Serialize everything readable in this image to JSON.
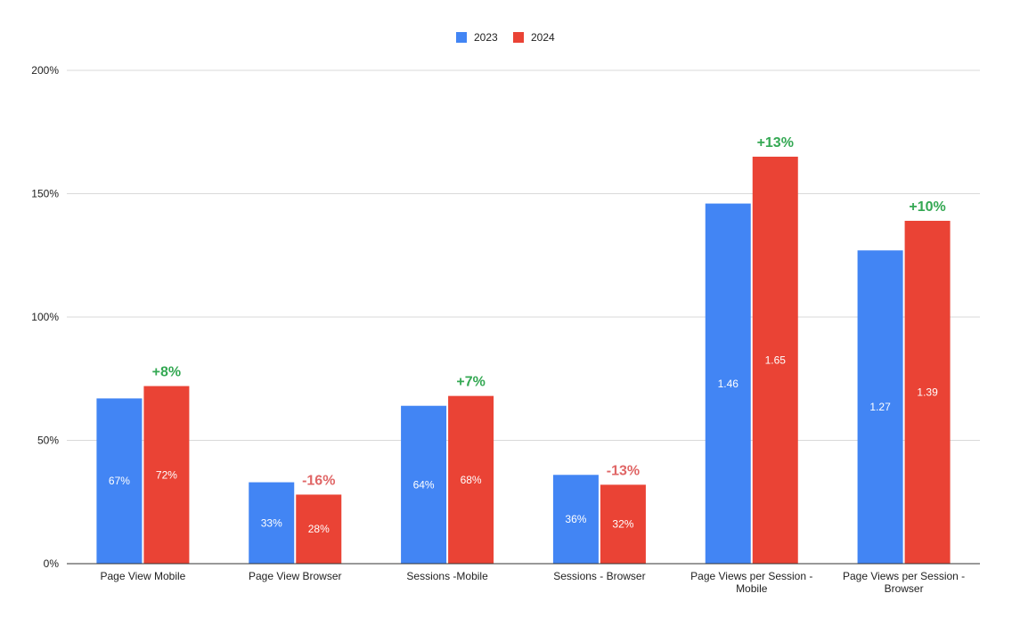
{
  "chart_data": {
    "type": "bar",
    "categories": [
      [
        "Page View Mobile"
      ],
      [
        "Page View  Browser"
      ],
      [
        "Sessions -Mobile"
      ],
      [
        "Sessions - Browser"
      ],
      [
        "Page Views per Session -",
        "Mobile"
      ],
      [
        "Page Views per Session -",
        "Browser"
      ]
    ],
    "series": [
      {
        "name": "2023",
        "color": "#4285f4",
        "values": [
          0.67,
          0.33,
          0.64,
          0.36,
          1.46,
          1.27
        ],
        "labels": [
          "67%",
          "33%",
          "64%",
          "36%",
          "1.46",
          "1.27"
        ]
      },
      {
        "name": "2024",
        "color": "#ea4335",
        "values": [
          0.72,
          0.28,
          0.68,
          0.32,
          1.65,
          1.39
        ],
        "labels": [
          "72%",
          "28%",
          "68%",
          "32%",
          "1.65",
          "1.39"
        ]
      }
    ],
    "annotations": [
      {
        "text": "+8%",
        "color": "#34a853"
      },
      {
        "text": "-16%",
        "color": "#e06666"
      },
      {
        "text": "+7%",
        "color": "#34a853"
      },
      {
        "text": "-13%",
        "color": "#e06666"
      },
      {
        "text": "+13%",
        "color": "#34a853"
      },
      {
        "text": "+10%",
        "color": "#34a853"
      }
    ],
    "y_ticks": [
      {
        "value": 0,
        "label": "0%"
      },
      {
        "value": 0.5,
        "label": "50%"
      },
      {
        "value": 1.0,
        "label": "100%"
      },
      {
        "value": 1.5,
        "label": "150%"
      },
      {
        "value": 2.0,
        "label": "200%"
      }
    ],
    "ylim": [
      0,
      2.0
    ],
    "legend_position": "top-center",
    "grid": true,
    "title": "",
    "xlabel": "",
    "ylabel": ""
  }
}
